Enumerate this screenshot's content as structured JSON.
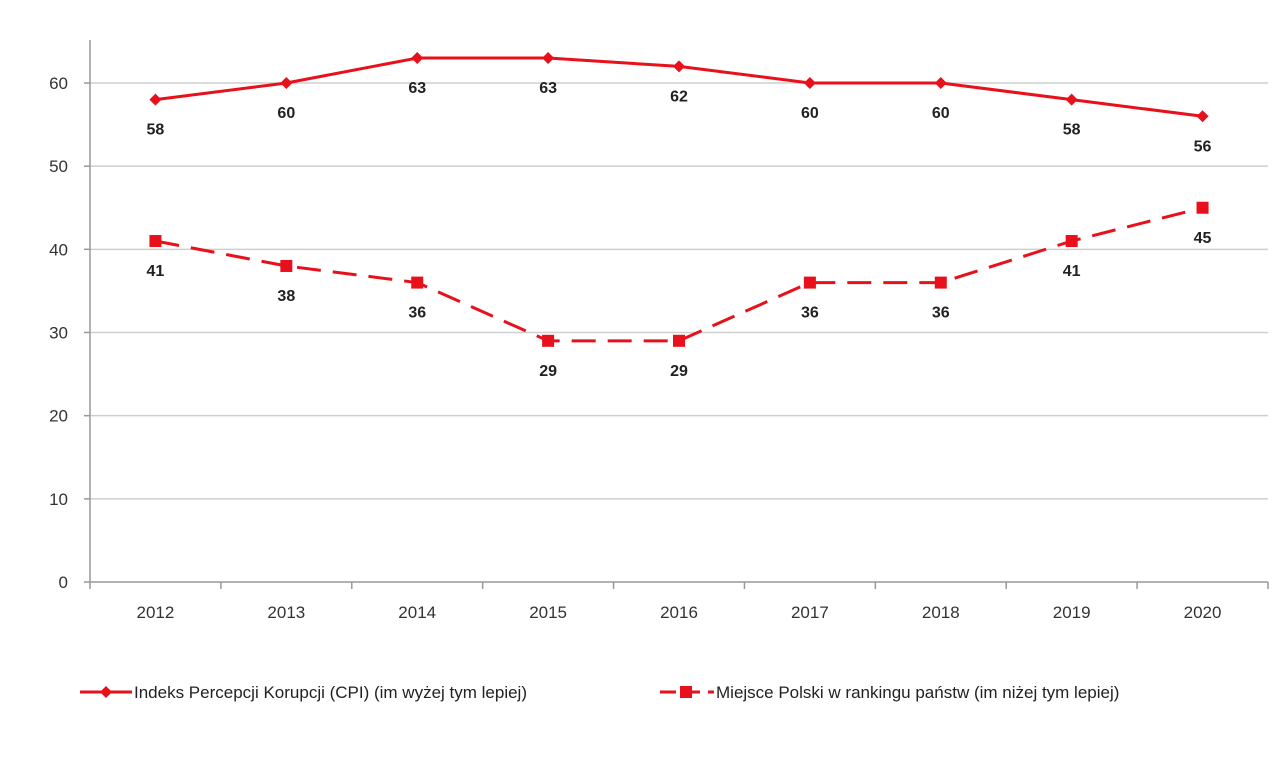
{
  "chart_data": {
    "type": "line",
    "title": "",
    "xlabel": "",
    "ylabel": "",
    "categories": [
      "2012",
      "2013",
      "2014",
      "2015",
      "2016",
      "2017",
      "2018",
      "2019",
      "2020"
    ],
    "ylim": [
      0,
      65
    ],
    "yticks": [
      0,
      10,
      20,
      30,
      40,
      50,
      60
    ],
    "grid": true,
    "legend_position": "bottom",
    "series": [
      {
        "name": "Indeks Percepcji Korupcji (CPI) (im wyżej tym lepiej)",
        "values": [
          58,
          60,
          63,
          63,
          62,
          60,
          60,
          58,
          56
        ],
        "labels": [
          "58",
          "60",
          "63",
          "63",
          "62",
          "60",
          "60",
          "58",
          "56"
        ],
        "color": "#e8101a",
        "line_style": "solid",
        "marker": "diamond"
      },
      {
        "name": "Miejsce Polski w rankingu państw (im niżej tym lepiej)",
        "values": [
          41,
          38,
          36,
          29,
          29,
          36,
          36,
          41,
          45
        ],
        "labels": [
          "41",
          "38",
          "36",
          "29",
          "29",
          "36",
          "36",
          "41",
          "45"
        ],
        "color": "#e8101a",
        "line_style": "dashed",
        "marker": "square"
      }
    ]
  }
}
